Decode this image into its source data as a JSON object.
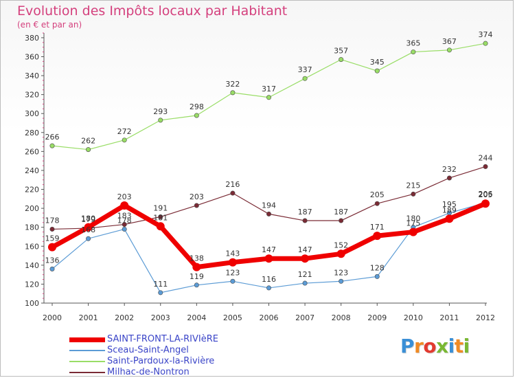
{
  "header": {
    "title": "Evolution des Impôts locaux par Habitant",
    "subtitle": "(en € et par an)"
  },
  "logo": {
    "text": "Proxiti",
    "letters": [
      {
        "ch": "P",
        "color": "#3a8fd6"
      },
      {
        "ch": "r",
        "color": "#f08a24"
      },
      {
        "ch": "o",
        "color": "#e23a2f"
      },
      {
        "ch": "x",
        "color": "#79b833"
      },
      {
        "ch": "i",
        "color": "#3a8fd6"
      },
      {
        "ch": "t",
        "color": "#f08a24"
      },
      {
        "ch": "i",
        "color": "#79b833"
      }
    ]
  },
  "chart_data": {
    "type": "line",
    "title": "Evolution des Impôts locaux par Habitant",
    "subtitle": "(en € et par an)",
    "xlabel": "",
    "ylabel": "",
    "x": [
      "2000",
      "2001",
      "2002",
      "2003",
      "2004",
      "2005",
      "2006",
      "2007",
      "2008",
      "2009",
      "2010",
      "2011",
      "2012"
    ],
    "ylim": [
      100,
      385
    ],
    "yticks": [
      100,
      120,
      140,
      160,
      180,
      200,
      220,
      240,
      260,
      280,
      300,
      320,
      340,
      360,
      380
    ],
    "grid": false,
    "legend_position": "bottom-left",
    "series": [
      {
        "name": "SAINT-FRONT-LA-RIVIèRE",
        "color": "#ef0000",
        "label_color": "#333333",
        "values": [
          159,
          180,
          203,
          181,
          138,
          143,
          147,
          147,
          152,
          171,
          175,
          189,
          205
        ],
        "labels": [
          "159",
          "180",
          "203",
          "181",
          "138",
          "143",
          "147",
          "147",
          "152",
          "171",
          "175",
          "189",
          "205"
        ],
        "emphasis": true
      },
      {
        "name": "Sceau-Saint-Angel",
        "color": "#5b9bd5",
        "label_color": "#333333",
        "values": [
          136,
          168,
          178,
          111,
          119,
          123,
          116,
          121,
          123,
          128,
          180,
          195,
          206
        ],
        "labels": [
          "136",
          "168",
          "178",
          "111",
          "119",
          "123",
          "116",
          "121",
          "123",
          "128",
          "180",
          "195",
          "206"
        ],
        "emphasis": false
      },
      {
        "name": "Saint-Pardoux-la-Rivière",
        "color": "#99dd66",
        "label_color": "#333333",
        "values": [
          266,
          262,
          272,
          293,
          298,
          322,
          317,
          337,
          357,
          345,
          365,
          367,
          374
        ],
        "labels": [
          "266",
          "262",
          "272",
          "293",
          "298",
          "322",
          "317",
          "337",
          "357",
          "345",
          "365",
          "367",
          "374"
        ],
        "emphasis": false
      },
      {
        "name": "Milhac-de-Nontron",
        "color": "#7a2b35",
        "label_color": "#333333",
        "values": [
          178,
          179,
          183,
          191,
          203,
          216,
          194,
          187,
          187,
          205,
          215,
          232,
          244
        ],
        "labels": [
          "178",
          "179",
          "183",
          "191",
          "203",
          "216",
          "194",
          "187",
          "187",
          "205",
          "215",
          "232",
          "244"
        ],
        "emphasis": false
      }
    ]
  }
}
